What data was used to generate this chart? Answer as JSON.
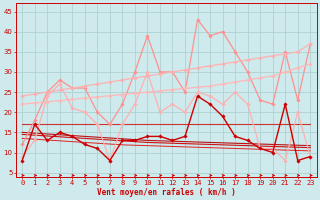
{
  "x": [
    0,
    1,
    2,
    3,
    4,
    5,
    6,
    7,
    8,
    9,
    10,
    11,
    12,
    13,
    14,
    15,
    16,
    17,
    18,
    19,
    20,
    21,
    22,
    23
  ],
  "background_color": "#ceeaec",
  "grid_color": "#aacccc",
  "xlabel": "Vent moyen/en rafales ( km/h )",
  "xlabel_color": "#cc0000",
  "yticks": [
    5,
    10,
    15,
    20,
    25,
    30,
    35,
    40,
    45
  ],
  "ylim": [
    4,
    47
  ],
  "xlim": [
    -0.5,
    23.5
  ],
  "series": [
    {
      "name": "rafales_high_jagged",
      "color": "#ff9090",
      "linewidth": 0.9,
      "marker": "D",
      "markersize": 1.8,
      "values": [
        12,
        18,
        25,
        28,
        26,
        26,
        20,
        17,
        22,
        30,
        39,
        30,
        30,
        25,
        43,
        39,
        40,
        35,
        30,
        23,
        22,
        35,
        23,
        37
      ]
    },
    {
      "name": "trend_top",
      "color": "#ffb0b0",
      "linewidth": 0.9,
      "marker": "D",
      "markersize": 1.8,
      "values": [
        24,
        24.5,
        25,
        25.5,
        26,
        26.5,
        27,
        27.5,
        28,
        28.5,
        29,
        29.5,
        30,
        30.5,
        31,
        31.5,
        32,
        32.5,
        33,
        33.5,
        34,
        34.5,
        35,
        37
      ]
    },
    {
      "name": "trend_mid",
      "color": "#ffb8b8",
      "linewidth": 0.9,
      "marker": "D",
      "markersize": 1.8,
      "values": [
        22,
        22.3,
        22.6,
        22.9,
        23.2,
        23.5,
        23.8,
        24.1,
        24.4,
        24.7,
        25,
        25.3,
        25.6,
        25.9,
        26.2,
        26.5,
        27,
        27.5,
        28,
        28.5,
        29,
        30,
        31,
        32
      ]
    },
    {
      "name": "rafales_mid_jagged",
      "color": "#ffb0b0",
      "linewidth": 0.9,
      "marker": "D",
      "markersize": 1.8,
      "values": [
        9,
        13,
        24,
        27,
        21,
        20,
        17,
        8,
        17,
        22,
        30,
        20,
        22,
        20,
        25,
        24,
        22,
        25,
        22,
        11,
        11,
        8,
        20,
        9
      ]
    },
    {
      "name": "trend_flat_high",
      "color": "#cc3333",
      "linewidth": 0.8,
      "marker": null,
      "markersize": 0,
      "values": [
        17,
        17,
        17,
        17,
        17,
        17,
        17,
        17,
        17,
        17,
        17,
        17,
        17,
        17,
        17,
        17,
        17,
        17,
        17,
        17,
        17,
        17,
        17,
        17
      ]
    },
    {
      "name": "trend_low1",
      "color": "#bb1111",
      "linewidth": 0.8,
      "marker": null,
      "markersize": 0,
      "values": [
        15.0,
        14.8,
        14.6,
        14.4,
        14.2,
        14.0,
        13.8,
        13.6,
        13.4,
        13.2,
        13.0,
        12.9,
        12.8,
        12.7,
        12.6,
        12.5,
        12.4,
        12.3,
        12.2,
        12.1,
        12.0,
        11.9,
        11.8,
        11.7
      ]
    },
    {
      "name": "trend_low2",
      "color": "#cc1111",
      "linewidth": 0.8,
      "marker": null,
      "markersize": 0,
      "values": [
        14.5,
        14.3,
        14.1,
        13.9,
        13.7,
        13.5,
        13.3,
        13.1,
        12.9,
        12.7,
        12.5,
        12.4,
        12.3,
        12.2,
        12.1,
        12.0,
        11.9,
        11.8,
        11.7,
        11.6,
        11.5,
        11.4,
        11.3,
        11.2
      ]
    },
    {
      "name": "trend_low3",
      "color": "#dd2222",
      "linewidth": 0.7,
      "marker": null,
      "markersize": 0,
      "values": [
        13.5,
        13.3,
        13.1,
        12.9,
        12.7,
        12.5,
        12.3,
        12.1,
        11.9,
        11.8,
        11.7,
        11.6,
        11.5,
        11.4,
        11.3,
        11.2,
        11.1,
        11.0,
        10.9,
        10.8,
        10.7,
        10.6,
        10.5,
        10.4
      ]
    },
    {
      "name": "vent_jagged",
      "color": "#cc0000",
      "linewidth": 1.0,
      "marker": "D",
      "markersize": 1.8,
      "values": [
        8,
        17,
        13,
        15,
        14,
        12,
        11,
        8,
        13,
        13,
        14,
        14,
        13,
        14,
        24,
        22,
        19,
        14,
        13,
        11,
        10,
        22,
        8,
        9
      ]
    }
  ],
  "wind_arrows": {
    "y": 4.3,
    "color": "#cc0000",
    "angles": [
      90,
      90,
      90,
      60,
      75,
      90,
      90,
      45,
      45,
      45,
      90,
      90,
      45,
      45,
      90,
      45,
      45,
      90,
      90,
      120,
      120,
      120,
      120,
      120
    ]
  },
  "axis_fontsize": 5.5,
  "tick_fontsize": 5.0
}
